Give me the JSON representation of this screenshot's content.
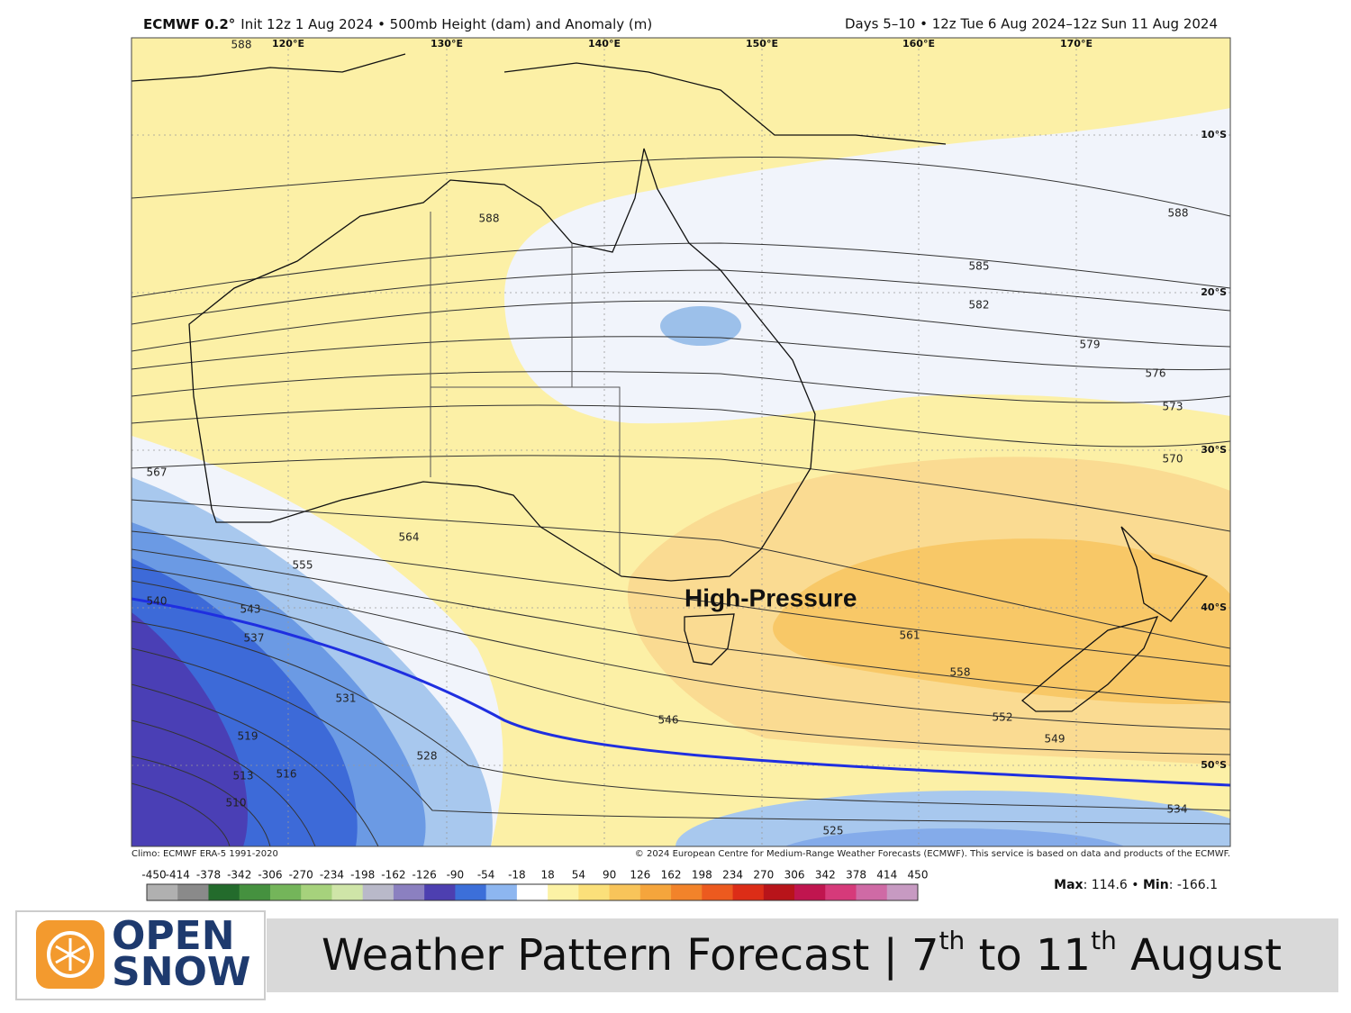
{
  "header": {
    "model": "ECMWF 0.2°",
    "subtitle": "Init 12z 1 Aug 2024 • 500mb Height (dam) and Anomaly (m)",
    "valid": "Days 5–10 • 12z Tue 6 Aug 2024–12z Sun 11 Aug 2024"
  },
  "map": {
    "longitudes": [
      "120°E",
      "130°E",
      "140°E",
      "150°E",
      "160°E",
      "170°E"
    ],
    "latitudes": [
      "10°S",
      "20°S",
      "30°S",
      "40°S",
      "50°S"
    ],
    "contour_labels": [
      588,
      588,
      588,
      585,
      582,
      579,
      576,
      573,
      570,
      567,
      564,
      561,
      558,
      555,
      552,
      549,
      546,
      543,
      540,
      537,
      534,
      531,
      528,
      525,
      519,
      516,
      513,
      510
    ],
    "annotation": "High-Pressure",
    "climo": "Climo: ECMWF ERA-5 1991-2020",
    "copyright": "© 2024 European Centre for Medium-Range Weather Forecasts (ECMWF). This service is based on data and products of the ECMWF."
  },
  "colorbar": {
    "ticks": [
      -450,
      -414,
      -378,
      -342,
      -306,
      -270,
      -234,
      -198,
      -162,
      -126,
      -90,
      -54,
      -18,
      18,
      54,
      90,
      126,
      162,
      198,
      234,
      270,
      306,
      342,
      378,
      414,
      450
    ]
  },
  "stats": [
    "Max",
    ": 114.6 • ",
    "Min",
    ": -166.1"
  ],
  "footer": {
    "logo": [
      "OPEN",
      "SNOW"
    ],
    "title_parts": [
      "Weather Pattern Forecast | 7",
      "th",
      " to 11",
      "th",
      " August"
    ]
  }
}
